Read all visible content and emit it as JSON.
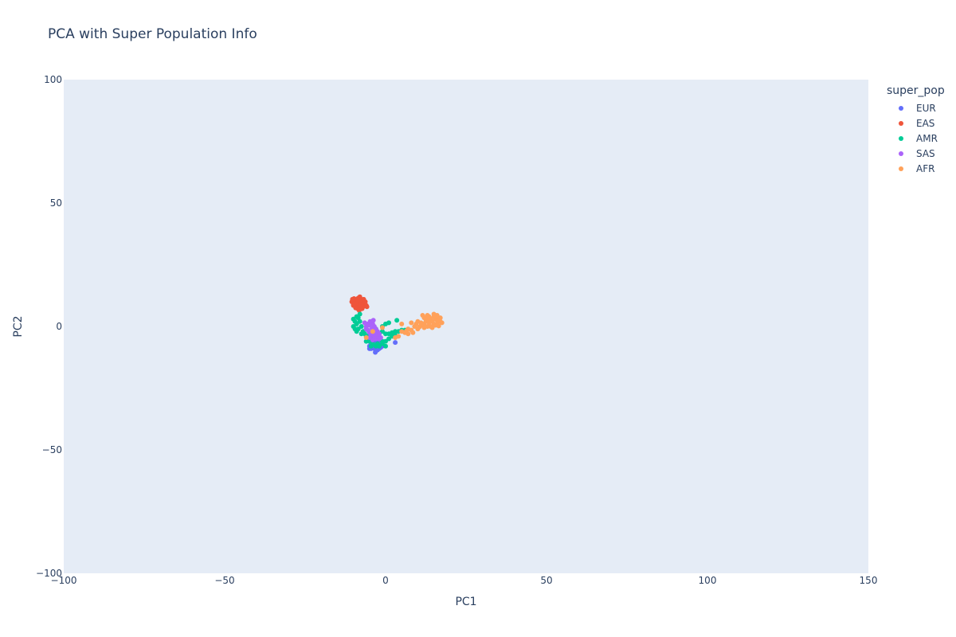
{
  "chart_data": {
    "type": "scatter",
    "title": "PCA with Super Population Info",
    "xlabel": "PC1",
    "ylabel": "PC2",
    "xlim": [
      -100,
      150
    ],
    "ylim": [
      -100,
      100
    ],
    "x_ticks": [
      -100,
      -50,
      0,
      50,
      100,
      150
    ],
    "y_ticks": [
      -100,
      -50,
      0,
      50,
      100
    ],
    "x_tick_labels": [
      "−100",
      "−50",
      "0",
      "50",
      "100",
      "150"
    ],
    "y_tick_labels": [
      "−100",
      "−50",
      "0",
      "50",
      "100"
    ],
    "grid": false,
    "legend_title": "super_pop",
    "legend_position": "right",
    "series": [
      {
        "name": "EUR",
        "color": "#636efa",
        "points": [
          [
            -5,
            -6
          ],
          [
            -4.5,
            -7
          ],
          [
            -4,
            -8
          ],
          [
            -3.5,
            -9
          ],
          [
            -3,
            -10
          ],
          [
            -2.5,
            -9.5
          ],
          [
            -2,
            -9
          ],
          [
            -1.5,
            -8.5
          ],
          [
            -1,
            -8
          ],
          [
            -3,
            -7
          ],
          [
            -2,
            -7.5
          ],
          [
            -4,
            -6.5
          ],
          [
            -5,
            -8
          ],
          [
            -4.5,
            -9
          ],
          [
            -3.5,
            -8
          ],
          [
            -2.5,
            -8
          ],
          [
            -1.5,
            -7
          ],
          [
            -6,
            -6
          ],
          [
            -5.5,
            -5
          ],
          [
            -3,
            -6
          ],
          [
            -2,
            -6
          ],
          [
            -4,
            -5
          ],
          [
            3,
            -6.5
          ],
          [
            -5,
            -9
          ],
          [
            -3.2,
            -10.5
          ]
        ]
      },
      {
        "name": "EAS",
        "color": "#ef553b",
        "points": [
          [
            -10,
            9
          ],
          [
            -9.5,
            10
          ],
          [
            -9,
            11
          ],
          [
            -8.5,
            11.5
          ],
          [
            -8,
            12
          ],
          [
            -7.5,
            11
          ],
          [
            -7,
            10
          ],
          [
            -6.5,
            9
          ],
          [
            -6,
            8.5
          ],
          [
            -9,
            8
          ],
          [
            -8.5,
            7
          ],
          [
            -8,
            8.5
          ],
          [
            -7.5,
            9.5
          ],
          [
            -7,
            8
          ],
          [
            -10.5,
            10
          ],
          [
            -9.8,
            11.3
          ],
          [
            -8.8,
            9.5
          ],
          [
            -7.8,
            10.5
          ],
          [
            -6.8,
            11
          ],
          [
            -9.3,
            7.5
          ],
          [
            -10,
            8.5
          ],
          [
            -8.2,
            6.5
          ],
          [
            -7.3,
            7.2
          ],
          [
            -6.3,
            10
          ],
          [
            -9.6,
            9.3
          ],
          [
            -8.6,
            10.8
          ],
          [
            -7.6,
            8.8
          ],
          [
            -10.3,
            11
          ],
          [
            -5.8,
            8
          ]
        ]
      },
      {
        "name": "AMR",
        "color": "#00cc96",
        "points": [
          [
            -10,
            3
          ],
          [
            -9.5,
            2
          ],
          [
            -9,
            1
          ],
          [
            -10,
            0
          ],
          [
            -9.5,
            -1
          ],
          [
            -9,
            -2
          ],
          [
            -8.5,
            3.5
          ],
          [
            -8,
            5
          ],
          [
            -8,
            2
          ],
          [
            -7.5,
            0
          ],
          [
            -7,
            -2
          ],
          [
            -6.5,
            -3
          ],
          [
            -6,
            -4
          ],
          [
            -5.5,
            -5
          ],
          [
            -5,
            -6
          ],
          [
            -4,
            -7
          ],
          [
            -3,
            -8
          ],
          [
            -2,
            -8
          ],
          [
            -1,
            -7
          ],
          [
            0,
            -8
          ],
          [
            -1,
            -6
          ],
          [
            -2,
            -5
          ],
          [
            -3,
            -4
          ],
          [
            -2,
            -3
          ],
          [
            0,
            -3
          ],
          [
            1,
            -3
          ],
          [
            2,
            -2.5
          ],
          [
            3,
            -2
          ],
          [
            4,
            -2
          ],
          [
            5,
            -1.5
          ],
          [
            6,
            -1.5
          ],
          [
            3.5,
            2.5
          ],
          [
            0,
            1
          ],
          [
            1,
            1.5
          ],
          [
            -1,
            0
          ],
          [
            -4,
            -2
          ],
          [
            -5,
            -3
          ],
          [
            -6,
            -1
          ],
          [
            -7.5,
            -3
          ],
          [
            -8.5,
            -1
          ],
          [
            -9,
            4
          ],
          [
            -6,
            -6
          ],
          [
            -4.5,
            -8
          ],
          [
            -2.5,
            -7
          ],
          [
            0,
            -6
          ],
          [
            1,
            -5
          ],
          [
            2,
            -4
          ],
          [
            3,
            -3.5
          ],
          [
            -3,
            -1
          ],
          [
            -1,
            -2
          ]
        ]
      },
      {
        "name": "SAS",
        "color": "#ab63fa",
        "points": [
          [
            -6,
            0
          ],
          [
            -5.5,
            1
          ],
          [
            -5,
            0.5
          ],
          [
            -4.5,
            1.5
          ],
          [
            -4,
            1
          ],
          [
            -3.5,
            0
          ],
          [
            -3,
            -1
          ],
          [
            -2.5,
            -2
          ],
          [
            -2,
            -3
          ],
          [
            -4,
            -2
          ],
          [
            -5,
            -2.5
          ],
          [
            -4.5,
            -3.5
          ],
          [
            -3.5,
            -4
          ],
          [
            -3,
            -5
          ],
          [
            -2,
            -5
          ],
          [
            -4,
            -5.5
          ],
          [
            -5,
            -4.5
          ],
          [
            -6,
            -1
          ],
          [
            -5.5,
            -1.5
          ],
          [
            -3.5,
            -2.5
          ],
          [
            -2.5,
            -4
          ],
          [
            -4.2,
            -0.8
          ],
          [
            -3.2,
            -3.2
          ],
          [
            -1.5,
            -4.5
          ],
          [
            -6.5,
            1.5
          ],
          [
            -4.8,
            2
          ],
          [
            -3.8,
            2.5
          ]
        ]
      },
      {
        "name": "AFR",
        "color": "#ffa15a",
        "points": [
          [
            5,
            -2
          ],
          [
            6,
            -2.5
          ],
          [
            7,
            -1
          ],
          [
            8,
            -1.5
          ],
          [
            9,
            0
          ],
          [
            10,
            -1
          ],
          [
            11,
            0.5
          ],
          [
            12,
            1
          ],
          [
            12.5,
            2
          ],
          [
            13,
            3
          ],
          [
            13.5,
            4
          ],
          [
            14,
            3
          ],
          [
            14.5,
            2
          ],
          [
            15,
            4
          ],
          [
            15.5,
            3
          ],
          [
            16,
            2.5
          ],
          [
            16.5,
            3.5
          ],
          [
            17,
            2
          ],
          [
            17.5,
            1.5
          ],
          [
            16,
            1
          ],
          [
            15,
            1
          ],
          [
            14,
            0
          ],
          [
            13,
            0
          ],
          [
            12,
            -0.5
          ],
          [
            11,
            1.5
          ],
          [
            10,
            2
          ],
          [
            13.5,
            1.5
          ],
          [
            14.5,
            -0.5
          ],
          [
            15.5,
            0.5
          ],
          [
            16.5,
            0.2
          ],
          [
            12,
            3.5
          ],
          [
            11.5,
            4.5
          ],
          [
            9.5,
            1
          ],
          [
            8,
            1.5
          ],
          [
            7,
            -3
          ],
          [
            4,
            -4
          ],
          [
            3,
            -4.5
          ],
          [
            5,
            1
          ],
          [
            -1,
            -0.5
          ],
          [
            -4,
            -2
          ],
          [
            -6,
            -4.5
          ],
          [
            15,
            5
          ],
          [
            16,
            4.5
          ],
          [
            17,
            3.5
          ],
          [
            13,
            4.5
          ],
          [
            8.5,
            -2.5
          ],
          [
            10.5,
            -0.2
          ],
          [
            6.5,
            -1.8
          ]
        ]
      }
    ]
  }
}
